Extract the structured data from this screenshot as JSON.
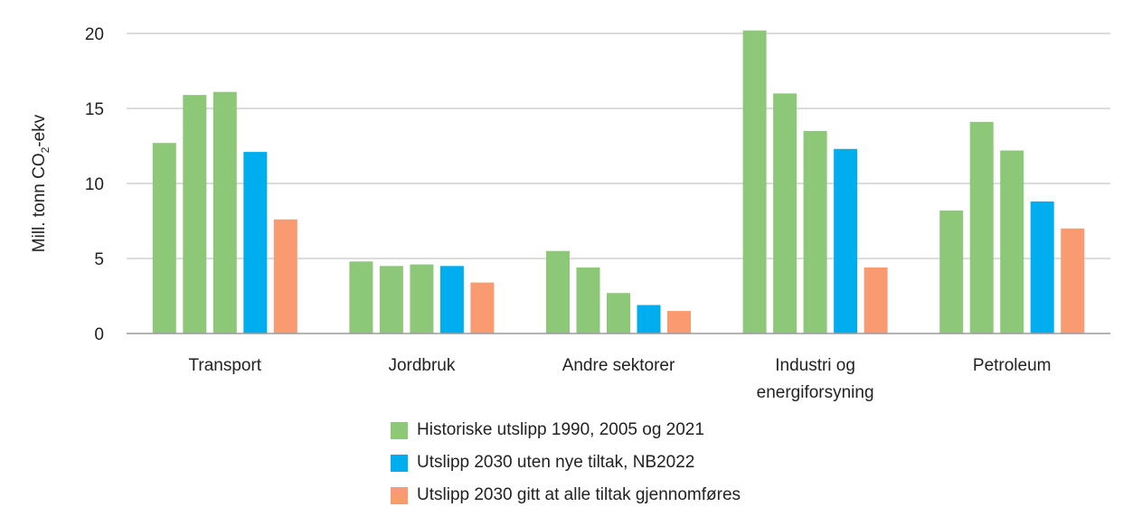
{
  "chart_data": {
    "type": "bar",
    "ylabel_prefix": "Mill. tonn CO",
    "ylabel_sub": "2",
    "ylabel_suffix": "-ekv",
    "xlabel": "",
    "ylim": [
      0,
      20
    ],
    "yticks": [
      0,
      5,
      10,
      15,
      20
    ],
    "grid": true,
    "legend_position": "bottom",
    "categories": [
      [
        "Transport"
      ],
      [
        "Jordbruk"
      ],
      [
        "Andre sektorer"
      ],
      [
        "Industri og",
        "energiforsyning"
      ],
      [
        "Petroleum"
      ]
    ],
    "bars": [
      {
        "values": [
          12.7,
          4.8,
          5.5,
          20.2,
          8.2
        ],
        "series": 0
      },
      {
        "values": [
          15.9,
          4.5,
          4.4,
          16.0,
          14.1
        ],
        "series": 0
      },
      {
        "values": [
          16.1,
          4.6,
          2.7,
          13.5,
          12.2
        ],
        "series": 0
      },
      {
        "values": [
          12.1,
          4.5,
          1.9,
          12.3,
          8.8
        ],
        "series": 1
      },
      {
        "values": [
          7.6,
          3.4,
          1.5,
          4.4,
          7.0
        ],
        "series": 2
      }
    ],
    "series": [
      {
        "name": "Historiske utslipp 1990, 2005 og 2021",
        "color": "#8dc878",
        "years": [
          1990,
          2005,
          2021
        ]
      },
      {
        "name": "Utslipp 2030 uten nye tiltak, NB2022",
        "color": "#00aeef"
      },
      {
        "name": "Utslipp 2030 gitt at alle tiltak gjennomføres",
        "color": "#fa9a70"
      }
    ],
    "colors": {
      "grid": "#b8b8b8",
      "axis": "#9a9a9a",
      "text": "#222222"
    }
  }
}
